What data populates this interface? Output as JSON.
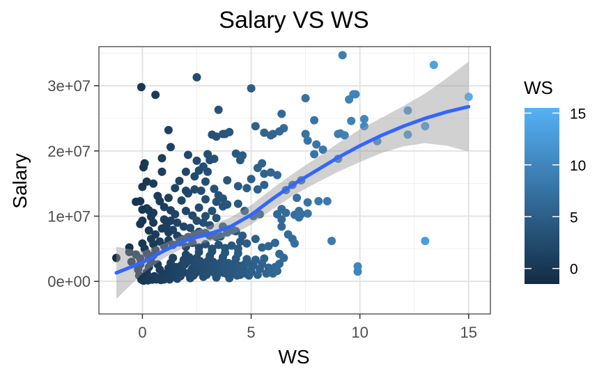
{
  "chart_data": {
    "type": "scatter",
    "title": "Salary VS WS",
    "xlabel": "WS",
    "ylabel": "Salary",
    "xlim": [
      -2,
      16
    ],
    "ylim": [
      -5000000,
      36000000
    ],
    "x_ticks": [
      0,
      5,
      10,
      15
    ],
    "x_tick_labels": [
      "0",
      "5",
      "10",
      "15"
    ],
    "y_ticks": [
      0,
      10000000,
      20000000,
      30000000
    ],
    "y_tick_labels": [
      "0e+00",
      "1e+07",
      "2e+07",
      "3e+07"
    ],
    "grid": true,
    "legend": {
      "title": "WS",
      "position": "right",
      "type": "colorbar",
      "range": [
        -1.5,
        15.5
      ],
      "ticks": [
        0,
        5,
        10,
        15
      ],
      "tick_labels": [
        "0",
        "5",
        "10",
        "15"
      ],
      "color_low": "#132B43",
      "color_high": "#56B1F7"
    },
    "colors": {
      "smooth_line": "#3366FF",
      "ribbon": "#999999",
      "point_low": "#132B43",
      "point_high": "#56B1F7"
    },
    "points": [
      [
        9.2,
        34700000
      ],
      [
        13.4,
        33200000
      ],
      [
        15.0,
        28300000
      ],
      [
        -0.05,
        29800000
      ],
      [
        0.6,
        28600000
      ],
      [
        2.5,
        31300000
      ],
      [
        5.0,
        29600000
      ],
      [
        7.5,
        28100000
      ],
      [
        9.7,
        28700000
      ],
      [
        9.8,
        28700000
      ],
      [
        9.5,
        27900000
      ],
      [
        12.2,
        26200000
      ],
      [
        13.0,
        23800000
      ],
      [
        12.2,
        22500000
      ],
      [
        10.8,
        21500000
      ],
      [
        10.2,
        24900000
      ],
      [
        10.2,
        23800000
      ],
      [
        9.1,
        22700000
      ],
      [
        9.0,
        22600000
      ],
      [
        9.3,
        22400000
      ],
      [
        9.6,
        24600000
      ],
      [
        7.9,
        24700000
      ],
      [
        8.0,
        21000000
      ],
      [
        8.3,
        20200000
      ],
      [
        7.5,
        22600000
      ],
      [
        7.6,
        21600000
      ],
      [
        7.9,
        19500000
      ],
      [
        6.4,
        25700000
      ],
      [
        6.5,
        23500000
      ],
      [
        6.3,
        23000000
      ],
      [
        6.0,
        22600000
      ],
      [
        5.9,
        22400000
      ],
      [
        5.6,
        22800000
      ],
      [
        5.2,
        23800000
      ],
      [
        3.5,
        26300000
      ],
      [
        3.7,
        22600000
      ],
      [
        3.8,
        22600000
      ],
      [
        4.0,
        22900000
      ],
      [
        3.2,
        22500000
      ],
      [
        3.4,
        22200000
      ],
      [
        1.2,
        23200000
      ],
      [
        1.3,
        20600000
      ],
      [
        0.9,
        18900000
      ],
      [
        2.1,
        19400000
      ],
      [
        2.5,
        18500000
      ],
      [
        3.1,
        18600000
      ],
      [
        2.8,
        17600000
      ],
      [
        2.6,
        17000000
      ],
      [
        3.0,
        16800000
      ],
      [
        0.05,
        17500000
      ],
      [
        0.1,
        18100000
      ],
      [
        0.2,
        15300000
      ],
      [
        4.3,
        19600000
      ],
      [
        4.5,
        18600000
      ],
      [
        4.6,
        19300000
      ],
      [
        5.5,
        18100000
      ],
      [
        5.3,
        17400000
      ],
      [
        5.6,
        16500000
      ],
      [
        5.9,
        16700000
      ],
      [
        6.2,
        16300000
      ],
      [
        4.4,
        14600000
      ],
      [
        4.8,
        14300000
      ],
      [
        5.0,
        15700000
      ],
      [
        5.3,
        14100000
      ],
      [
        5.6,
        14800000
      ],
      [
        6.6,
        14000000
      ],
      [
        6.9,
        14800000
      ],
      [
        7.3,
        15500000
      ],
      [
        7.6,
        12100000
      ],
      [
        8.1,
        12300000
      ],
      [
        8.5,
        12300000
      ],
      [
        7.1,
        12800000
      ],
      [
        9.0,
        18800000
      ],
      [
        6.4,
        11100000
      ],
      [
        6.2,
        10300000
      ],
      [
        6.6,
        10500000
      ],
      [
        7.0,
        10200000
      ],
      [
        7.2,
        10800000
      ],
      [
        7.3,
        10300000
      ],
      [
        6.4,
        9500000
      ],
      [
        7.2,
        9800000
      ],
      [
        6.4,
        8400000
      ],
      [
        7.6,
        10400000
      ],
      [
        -0.3,
        12200000
      ],
      [
        0.2,
        11200000
      ],
      [
        0.3,
        10900000
      ],
      [
        0.5,
        10500000
      ],
      [
        0.0,
        11000000
      ],
      [
        0.7,
        13100000
      ],
      [
        1.2,
        12800000
      ],
      [
        1.0,
        11400000
      ],
      [
        1.3,
        10900000
      ],
      [
        1.5,
        10300000
      ],
      [
        1.8,
        12400000
      ],
      [
        2.1,
        13500000
      ],
      [
        2.0,
        13900000
      ],
      [
        2.4,
        14100000
      ],
      [
        2.7,
        13900000
      ],
      [
        2.9,
        12600000
      ],
      [
        3.3,
        14200000
      ],
      [
        3.5,
        13200000
      ],
      [
        3.7,
        12700000
      ],
      [
        3.9,
        15500000
      ],
      [
        2.0,
        10800000
      ],
      [
        2.3,
        10100000
      ],
      [
        2.6,
        11300000
      ],
      [
        2.9,
        10000000
      ],
      [
        3.2,
        10800000
      ],
      [
        3.4,
        12200000
      ],
      [
        3.7,
        11500000
      ],
      [
        3.9,
        11800000
      ],
      [
        4.4,
        11900000
      ],
      [
        4.7,
        10800000
      ],
      [
        5.1,
        10000000
      ],
      [
        5.4,
        10300000
      ],
      [
        1.0,
        9500000
      ],
      [
        1.3,
        9300000
      ],
      [
        1.6,
        9000000
      ],
      [
        1.9,
        8400000
      ],
      [
        2.2,
        8200000
      ],
      [
        2.5,
        9300000
      ],
      [
        2.8,
        9000000
      ],
      [
        3.1,
        8600000
      ],
      [
        3.4,
        9700000
      ],
      [
        3.7,
        8400000
      ],
      [
        4.0,
        8000000
      ],
      [
        4.3,
        7700000
      ],
      [
        4.6,
        7000000
      ],
      [
        0.0,
        9300000
      ],
      [
        0.5,
        9000000
      ],
      [
        1.1,
        8500000
      ],
      [
        1.4,
        7900000
      ],
      [
        1.6,
        7000000
      ],
      [
        1.8,
        6500000
      ],
      [
        2.1,
        6800000
      ],
      [
        2.4,
        7200000
      ],
      [
        2.6,
        7600000
      ],
      [
        2.9,
        7400000
      ],
      [
        3.1,
        7000000
      ],
      [
        3.4,
        6800000
      ],
      [
        3.6,
        6900000
      ],
      [
        3.9,
        7500000
      ],
      [
        4.2,
        7800000
      ],
      [
        4.5,
        6100000
      ],
      [
        4.8,
        5800000
      ],
      [
        5.2,
        6500000
      ],
      [
        5.5,
        5200000
      ],
      [
        5.8,
        5400000
      ],
      [
        6.1,
        5900000
      ],
      [
        6.3,
        4200000
      ],
      [
        6.5,
        3600000
      ],
      [
        6.7,
        7200000
      ],
      [
        6.9,
        6500000
      ],
      [
        7.0,
        5800000
      ],
      [
        8.7,
        6200000
      ],
      [
        13.0,
        6200000
      ],
      [
        9.9,
        2300000
      ],
      [
        9.9,
        1500000
      ],
      [
        -1.2,
        3600000
      ],
      [
        -0.6,
        5200000
      ],
      [
        -0.6,
        4500000
      ],
      [
        -0.3,
        4100000
      ],
      [
        -0.5,
        3000000
      ],
      [
        -0.1,
        3500000
      ],
      [
        -0.1,
        2600000
      ],
      [
        -0.2,
        1800000
      ],
      [
        -0.15,
        900000
      ],
      [
        0.0,
        200000
      ],
      [
        0.1,
        700000
      ],
      [
        0.2,
        1400000
      ],
      [
        0.3,
        2200000
      ],
      [
        0.4,
        3000000
      ],
      [
        0.5,
        4000000
      ],
      [
        0.6,
        4800000
      ],
      [
        0.7,
        2600000
      ],
      [
        0.8,
        1800000
      ],
      [
        0.9,
        900000
      ],
      [
        1.0,
        300000
      ],
      [
        1.1,
        1200000
      ],
      [
        1.2,
        2000000
      ],
      [
        1.3,
        2800000
      ],
      [
        1.4,
        3600000
      ],
      [
        1.5,
        1000000
      ],
      [
        1.6,
        400000
      ],
      [
        1.7,
        1800000
      ],
      [
        1.8,
        2500000
      ],
      [
        1.9,
        3300000
      ],
      [
        2.0,
        4100000
      ],
      [
        2.1,
        1200000
      ],
      [
        2.2,
        500000
      ],
      [
        2.3,
        2000000
      ],
      [
        2.4,
        2800000
      ],
      [
        2.5,
        3600000
      ],
      [
        2.6,
        4500000
      ],
      [
        2.7,
        1500000
      ],
      [
        2.8,
        700000
      ],
      [
        2.9,
        2300000
      ],
      [
        3.0,
        3100000
      ],
      [
        3.1,
        3900000
      ],
      [
        3.2,
        4600000
      ],
      [
        3.3,
        1300000
      ],
      [
        3.4,
        600000
      ],
      [
        3.5,
        2100000
      ],
      [
        3.6,
        2900000
      ],
      [
        3.7,
        3700000
      ],
      [
        3.8,
        4400000
      ],
      [
        3.9,
        1100000
      ],
      [
        4.0,
        500000
      ],
      [
        4.1,
        1900000
      ],
      [
        4.2,
        2700000
      ],
      [
        4.3,
        3500000
      ],
      [
        4.4,
        4300000
      ],
      [
        4.5,
        1000000
      ],
      [
        4.6,
        1800000
      ],
      [
        4.7,
        2600000
      ],
      [
        4.8,
        3400000
      ],
      [
        4.9,
        900000
      ],
      [
        5.0,
        1700000
      ],
      [
        5.1,
        2500000
      ],
      [
        5.2,
        3300000
      ],
      [
        5.3,
        1000000
      ],
      [
        5.4,
        1900000
      ],
      [
        5.5,
        2700000
      ],
      [
        5.6,
        3500000
      ],
      [
        5.7,
        1200000
      ],
      [
        5.8,
        2100000
      ],
      [
        5.9,
        1400000
      ],
      [
        6.0,
        1200000
      ],
      [
        6.1,
        2200000
      ],
      [
        6.2,
        1600000
      ],
      [
        6.3,
        2700000
      ],
      [
        -0.05,
        300000
      ],
      [
        0.05,
        100000
      ],
      [
        0.15,
        400000
      ],
      [
        0.25,
        150000
      ],
      [
        0.35,
        600000
      ],
      [
        0.45,
        250000
      ],
      [
        0.55,
        800000
      ],
      [
        0.65,
        300000
      ],
      [
        0.75,
        500000
      ],
      [
        0.85,
        200000
      ],
      [
        0.95,
        700000
      ],
      [
        1.05,
        1000000
      ],
      [
        1.15,
        500000
      ],
      [
        1.25,
        300000
      ],
      [
        1.35,
        900000
      ],
      [
        1.45,
        1500000
      ],
      [
        1.55,
        2200000
      ],
      [
        1.65,
        1300000
      ],
      [
        1.75,
        800000
      ],
      [
        1.85,
        1600000
      ],
      [
        1.95,
        2600000
      ],
      [
        2.05,
        3000000
      ],
      [
        2.15,
        3700000
      ],
      [
        2.25,
        1700000
      ],
      [
        2.35,
        900000
      ],
      [
        2.45,
        1300000
      ],
      [
        2.55,
        2200000
      ],
      [
        2.65,
        3100000
      ],
      [
        2.75,
        2600000
      ],
      [
        2.85,
        1800000
      ],
      [
        2.95,
        1000000
      ],
      [
        3.05,
        1500000
      ],
      [
        3.15,
        2300000
      ],
      [
        3.25,
        3000000
      ],
      [
        3.35,
        1800000
      ],
      [
        3.45,
        1100000
      ],
      [
        3.55,
        1600000
      ],
      [
        3.65,
        2400000
      ],
      [
        3.75,
        1300000
      ],
      [
        3.85,
        2000000
      ],
      [
        3.95,
        2800000
      ],
      [
        4.05,
        1400000
      ],
      [
        4.15,
        2200000
      ],
      [
        4.25,
        1600000
      ],
      [
        4.35,
        900000
      ],
      [
        4.45,
        2400000
      ],
      [
        4.55,
        1500000
      ],
      [
        4.65,
        2100000
      ],
      [
        4.75,
        1200000
      ],
      [
        4.85,
        2800000
      ],
      [
        4.95,
        1300000
      ],
      [
        0.0,
        5800000
      ],
      [
        0.1,
        5000000
      ],
      [
        0.2,
        4300000
      ],
      [
        0.3,
        3600000
      ],
      [
        0.4,
        6500000
      ],
      [
        0.5,
        5700000
      ],
      [
        0.8,
        6100000
      ],
      [
        1.0,
        5400000
      ],
      [
        1.2,
        6300000
      ],
      [
        1.4,
        5600000
      ],
      [
        1.7,
        6000000
      ],
      [
        2.0,
        5300000
      ],
      [
        2.3,
        5900000
      ],
      [
        2.6,
        5200000
      ],
      [
        2.9,
        5700000
      ],
      [
        3.2,
        5000000
      ],
      [
        3.5,
        5600000
      ],
      [
        3.8,
        5100000
      ],
      [
        4.1,
        5500000
      ],
      [
        4.4,
        5000000
      ],
      [
        0.3,
        7800000
      ],
      [
        0.6,
        7200000
      ],
      [
        0.9,
        8100000
      ],
      [
        1.2,
        7500000
      ],
      [
        -0.1,
        8800000
      ],
      [
        0.4,
        9900000
      ],
      [
        0.8,
        12300000
      ],
      [
        0.0,
        14500000
      ],
      [
        0.5,
        15000000
      ],
      [
        -0.1,
        12300000
      ],
      [
        3.0,
        19500000
      ],
      [
        3.3,
        18800000
      ],
      [
        2.0,
        16800000
      ],
      [
        1.7,
        15400000
      ],
      [
        2.4,
        16100000
      ],
      [
        2.9,
        15300000
      ],
      [
        0.9,
        16800000
      ],
      [
        1.5,
        14300000
      ]
    ],
    "smooth_curve": [
      [
        -1.2,
        1300000,
        -2700000,
        5300000
      ],
      [
        0.0,
        2900000,
        1200000,
        4600000
      ],
      [
        1.0,
        4700000,
        3600000,
        5800000
      ],
      [
        2.0,
        6300000,
        5300000,
        7300000
      ],
      [
        3.0,
        7200000,
        6000000,
        8400000
      ],
      [
        4.0,
        8300000,
        6900000,
        9700000
      ],
      [
        5.0,
        10200000,
        8700000,
        11700000
      ],
      [
        6.0,
        12700000,
        11100000,
        14300000
      ],
      [
        7.0,
        15000000,
        13300000,
        16700000
      ],
      [
        8.0,
        17000000,
        15100000,
        18900000
      ],
      [
        9.0,
        19000000,
        16800000,
        21200000
      ],
      [
        10.0,
        20800000,
        18300000,
        23300000
      ],
      [
        11.0,
        22400000,
        19700000,
        25100000
      ],
      [
        12.0,
        23800000,
        20700000,
        26900000
      ],
      [
        13.0,
        25000000,
        21200000,
        28800000
      ],
      [
        14.0,
        26000000,
        20800000,
        31200000
      ],
      [
        15.0,
        26800000,
        19900000,
        33700000
      ]
    ]
  }
}
